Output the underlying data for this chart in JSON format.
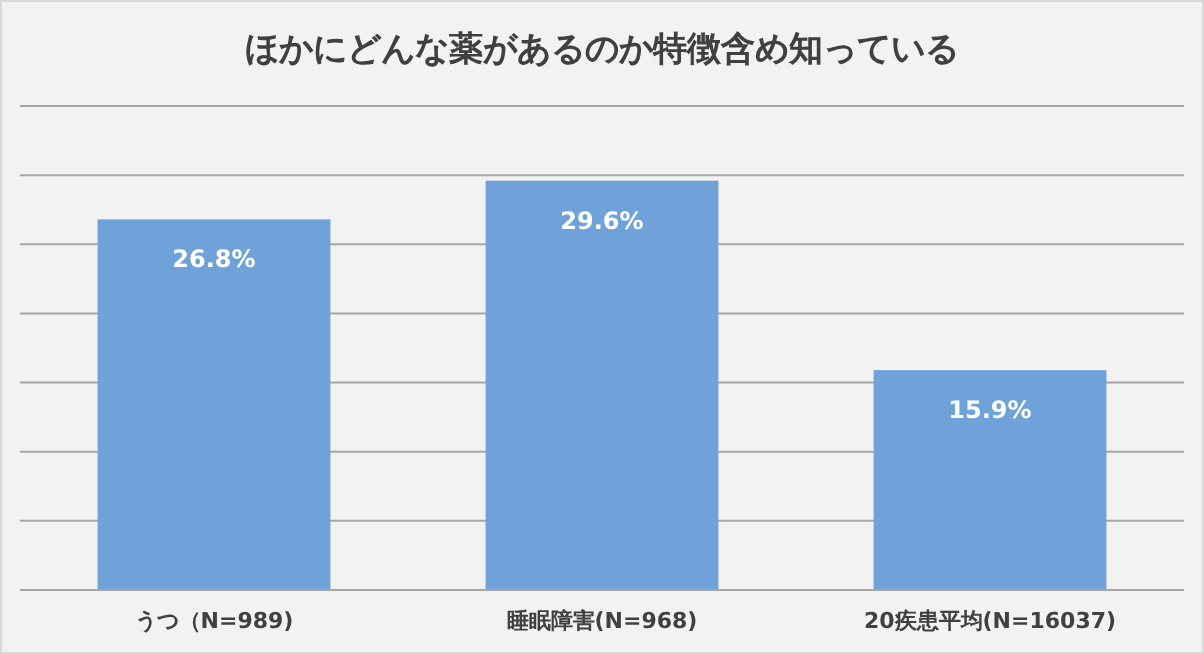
{
  "chart_data": {
    "type": "bar",
    "title": "ほかにどんな薬があるのか特徴含め知っている",
    "categories": [
      "うつ（N=989)",
      "睡眠障害(N=968)",
      "20疾患平均(N=16037)"
    ],
    "values": [
      26.8,
      29.6,
      15.9
    ],
    "value_labels": [
      "26.8%",
      "29.6%",
      "15.9%"
    ],
    "color": "#6fa2d8",
    "ylim": [
      0,
      35
    ],
    "yticks": [
      {
        "value": 0,
        "label": null
      },
      {
        "value": 5,
        "label": null
      },
      {
        "value": 10,
        "label": null
      },
      {
        "value": 15,
        "label": null
      },
      {
        "value": 20,
        "label": null
      },
      {
        "value": 25,
        "label": null
      },
      {
        "value": 30,
        "label": null
      },
      {
        "value": 35,
        "label": null
      }
    ],
    "tick_labels": "x",
    "grid": "y"
  }
}
